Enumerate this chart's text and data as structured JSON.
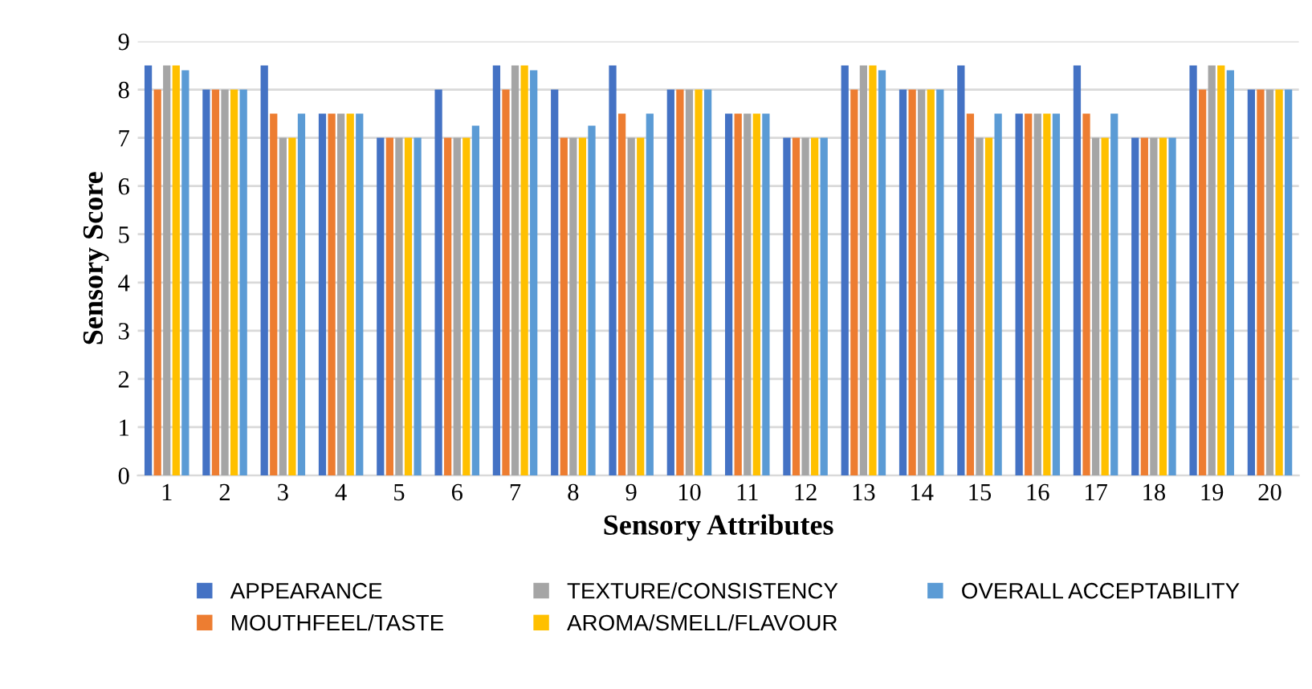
{
  "chart_data": {
    "type": "bar",
    "xlabel": "Sensory Attributes",
    "ylabel": "Sensory Score",
    "categories": [
      "1",
      "2",
      "3",
      "4",
      "5",
      "6",
      "7",
      "8",
      "9",
      "10",
      "11",
      "12",
      "13",
      "14",
      "15",
      "16",
      "17",
      "18",
      "19",
      "20"
    ],
    "series": [
      {
        "name": "APPEARANCE",
        "color": "#4472c4",
        "values": [
          8.5,
          8,
          8.5,
          7.5,
          7,
          8,
          8.5,
          8,
          8.5,
          8,
          7.5,
          7,
          8.5,
          8,
          8.5,
          7.5,
          8.5,
          7,
          8.5,
          8
        ]
      },
      {
        "name": "MOUTHFEEL/TASTE",
        "color": "#ed7d31",
        "values": [
          8,
          8,
          7.5,
          7.5,
          7,
          7,
          8,
          7,
          7.5,
          8,
          7.5,
          7,
          8,
          8,
          7.5,
          7.5,
          7.5,
          7,
          8,
          8
        ]
      },
      {
        "name": "TEXTURE/CONSISTENCY",
        "color": "#a5a5a5",
        "values": [
          8.5,
          8,
          7,
          7.5,
          7,
          7,
          8.5,
          7,
          7,
          8,
          7.5,
          7,
          8.5,
          8,
          7,
          7.5,
          7,
          7,
          8.5,
          8
        ]
      },
      {
        "name": "AROMA/SMELL/FLAVOUR",
        "color": "#ffc000",
        "values": [
          8.5,
          8,
          7,
          7.5,
          7,
          7,
          8.5,
          7,
          7,
          8,
          7.5,
          7,
          8.5,
          8,
          7,
          7.5,
          7,
          7,
          8.5,
          8
        ]
      },
      {
        "name": "OVERALL ACCEPTABILITY",
        "color": "#5b9bd5",
        "values": [
          8.4,
          8,
          7.5,
          7.5,
          7,
          7.25,
          8.4,
          7.25,
          7.5,
          8,
          7.5,
          7,
          8.4,
          8,
          7.5,
          7.5,
          7.5,
          7,
          8.4,
          8
        ]
      }
    ],
    "ylim": [
      0,
      9
    ],
    "yticks": [
      0,
      1,
      2,
      3,
      4,
      5,
      6,
      7,
      8,
      9
    ],
    "grid": "y",
    "legend": "bottom"
  }
}
